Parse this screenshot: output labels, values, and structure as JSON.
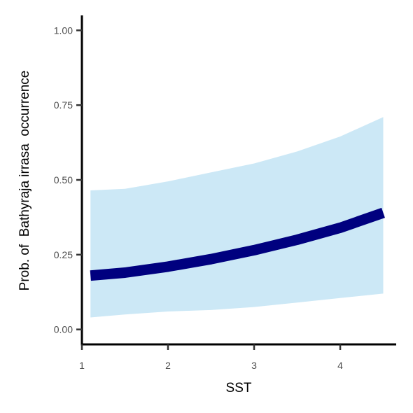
{
  "chart_data": {
    "type": "line",
    "xlabel": "SST",
    "ylabel": "Prob. of  Bathyraja irrasa  occurrence",
    "xlim": [
      1.0,
      4.65
    ],
    "ylim": [
      -0.05,
      1.05
    ],
    "x_ticks": [
      {
        "value": 1,
        "label": "1"
      },
      {
        "value": 2,
        "label": "2"
      },
      {
        "value": 3,
        "label": "3"
      },
      {
        "value": 4,
        "label": "4"
      }
    ],
    "y_ticks": [
      {
        "value": 0.0,
        "label": "0.00"
      },
      {
        "value": 0.25,
        "label": "0.25"
      },
      {
        "value": 0.5,
        "label": "0.50"
      },
      {
        "value": 0.75,
        "label": "0.75"
      },
      {
        "value": 1.0,
        "label": "1.00"
      }
    ],
    "grid": false,
    "legend": "none",
    "series": [
      {
        "x": [
          1.1,
          1.5,
          2.0,
          2.5,
          3.0,
          3.5,
          4.0,
          4.5
        ],
        "y": [
          0.18,
          0.19,
          0.21,
          0.235,
          0.265,
          0.3,
          0.34,
          0.39
        ],
        "lower": [
          0.04,
          0.05,
          0.06,
          0.065,
          0.075,
          0.09,
          0.105,
          0.12
        ],
        "upper": [
          0.465,
          0.47,
          0.495,
          0.525,
          0.555,
          0.595,
          0.645,
          0.71
        ]
      }
    ],
    "colors": {
      "line": "#00007f",
      "ribbon": "#cce8f6",
      "axis": "#000000",
      "tick_text": "#4d4d4d"
    }
  }
}
